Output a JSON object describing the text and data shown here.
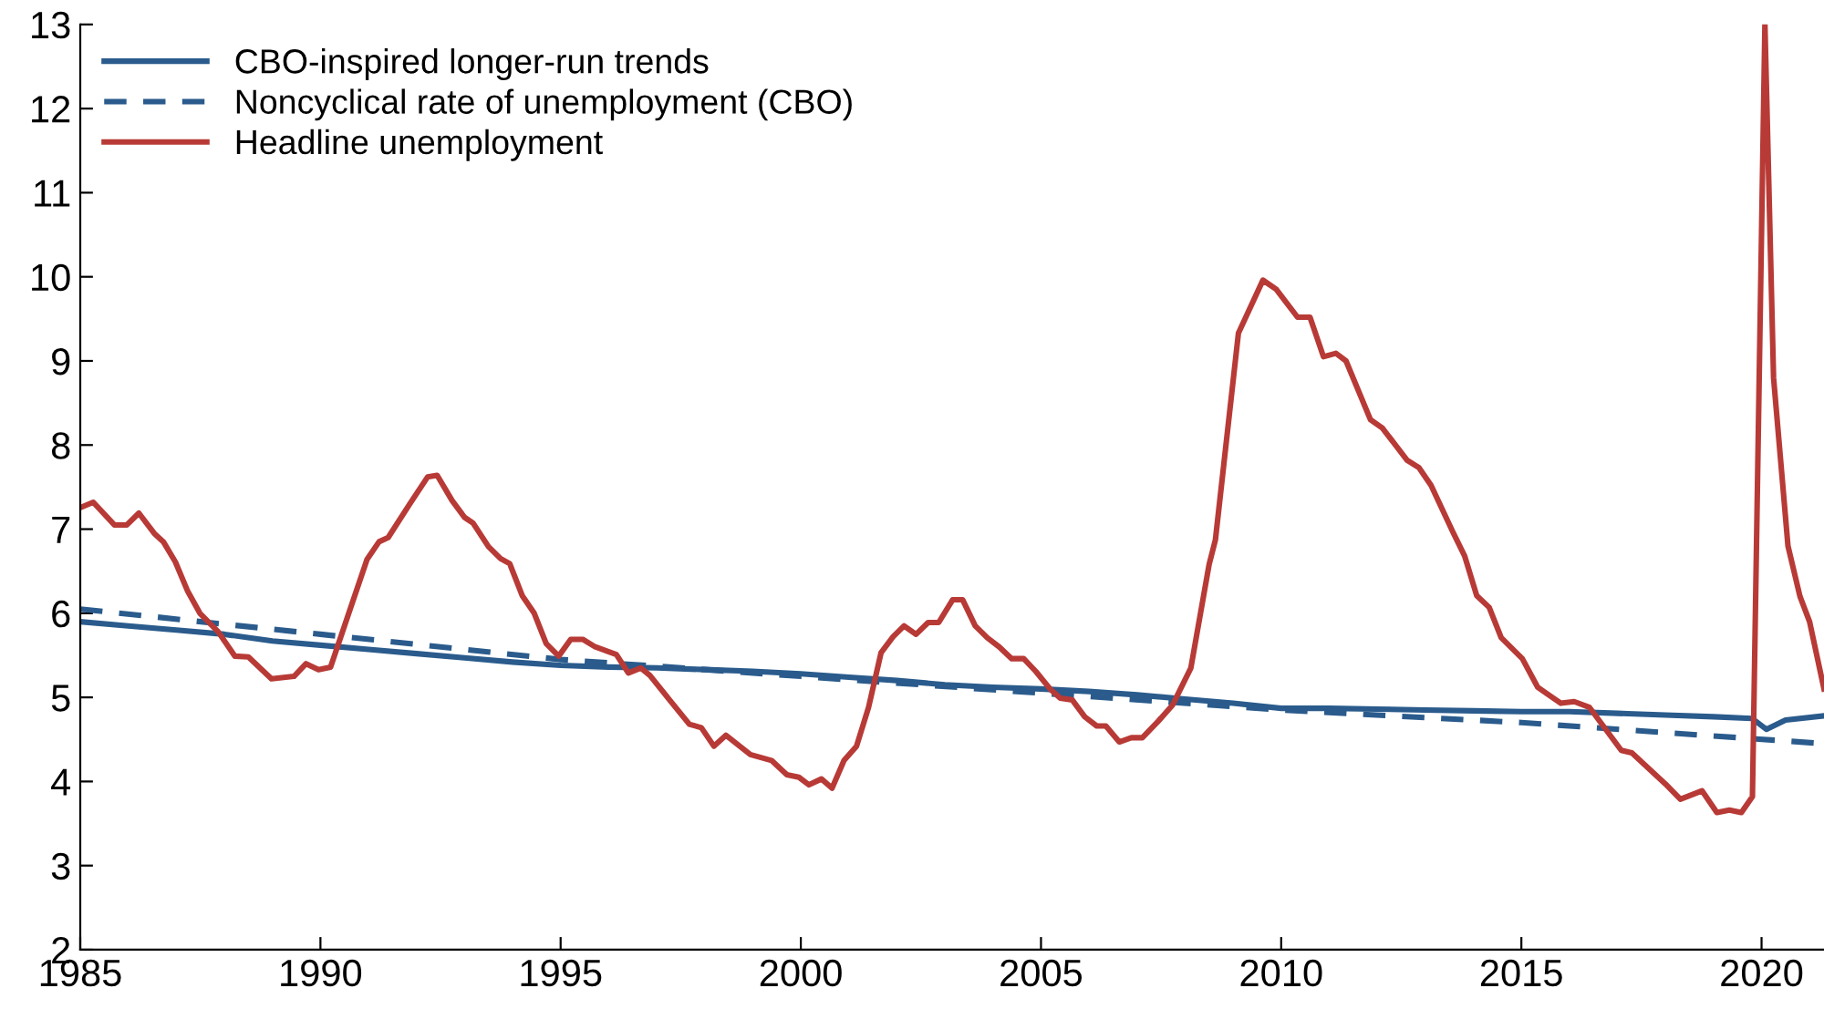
{
  "chart_data": {
    "type": "line",
    "xlim": [
      1985,
      2021.3
    ],
    "xticks": [
      1985,
      1990,
      1995,
      2000,
      2005,
      2010,
      2015,
      2020
    ],
    "ylim": [
      2,
      13
    ],
    "yticks": [
      2,
      3,
      4,
      5,
      6,
      7,
      8,
      9,
      10,
      11,
      12,
      13
    ],
    "grid": false,
    "legend": "top left",
    "series": [
      {
        "name": "CBO-inspired longer-run trends",
        "color": "#2a5b8c",
        "line_style": "solid",
        "x": [
          1985,
          1986,
          1987,
          1988,
          1989,
          1990,
          1991,
          1992,
          1993,
          1994,
          1995,
          1996,
          1997,
          1998,
          1999,
          2000,
          2001,
          2002,
          2003,
          2004,
          2005,
          2006,
          2007,
          2008,
          2009,
          2010,
          2011,
          2012,
          2013,
          2014,
          2015,
          2016,
          2017,
          2018,
          2019,
          2019.8,
          2020.1,
          2020.5,
          2021.3
        ],
        "values": [
          5.9,
          5.85,
          5.8,
          5.75,
          5.67,
          5.62,
          5.57,
          5.52,
          5.47,
          5.42,
          5.38,
          5.36,
          5.35,
          5.33,
          5.31,
          5.28,
          5.24,
          5.2,
          5.15,
          5.12,
          5.1,
          5.07,
          5.03,
          4.98,
          4.93,
          4.87,
          4.87,
          4.86,
          4.85,
          4.84,
          4.83,
          4.83,
          4.81,
          4.79,
          4.77,
          4.75,
          4.62,
          4.73,
          4.78
        ]
      },
      {
        "name": "Noncyclical rate of unemployment (CBO)",
        "color": "#2a5b8c",
        "line_style": "dashed",
        "x": [
          1985,
          1990,
          1995,
          2000,
          2005,
          2010,
          2015,
          2021.3
        ],
        "values": [
          6.05,
          5.75,
          5.45,
          5.25,
          5.05,
          4.85,
          4.7,
          4.45
        ]
      },
      {
        "name": "Headline unemployment",
        "color": "#b83a36",
        "line_style": "solid",
        "x": [
          1985.02,
          1985.27,
          1985.71,
          1985.97,
          1986.22,
          1986.54,
          1986.73,
          1986.98,
          1987.23,
          1987.49,
          1987.87,
          1988.22,
          1988.5,
          1988.98,
          1989.45,
          1989.7,
          1989.96,
          1990.21,
          1990.59,
          1990.97,
          1991.22,
          1991.41,
          1991.86,
          1992.23,
          1992.43,
          1992.74,
          1993.0,
          1993.18,
          1993.5,
          1993.75,
          1993.94,
          1994.2,
          1994.45,
          1994.7,
          1994.96,
          1995.21,
          1995.46,
          1995.72,
          1996.16,
          1996.41,
          1996.67,
          1996.86,
          1997.24,
          1997.68,
          1997.93,
          1998.19,
          1998.44,
          1998.95,
          1999.39,
          1999.71,
          1999.96,
          2000.17,
          2000.43,
          2000.65,
          2000.9,
          2001.16,
          2001.41,
          2001.67,
          2001.92,
          2002.15,
          2002.4,
          2002.65,
          2002.87,
          2003.16,
          2003.37,
          2003.63,
          2003.88,
          2004.13,
          2004.39,
          2004.64,
          2004.89,
          2005.19,
          2005.4,
          2005.65,
          2005.91,
          2006.16,
          2006.35,
          2006.63,
          2006.88,
          2007.11,
          2007.43,
          2007.74,
          2008.12,
          2008.5,
          2008.63,
          2009.11,
          2009.62,
          2009.9,
          2010.34,
          2010.6,
          2010.88,
          2011.14,
          2011.35,
          2011.86,
          2012.11,
          2012.62,
          2012.87,
          2013.12,
          2013.57,
          2013.82,
          2014.07,
          2014.33,
          2014.58,
          2015.02,
          2015.34,
          2015.82,
          2016.1,
          2016.42,
          2017.08,
          2017.3,
          2018.0,
          2018.31,
          2018.76,
          2019.07,
          2019.33,
          2019.58,
          2019.81,
          2020.07,
          2020.25,
          2020.55,
          2020.8,
          2021.0,
          2021.3
        ],
        "values": [
          7.26,
          7.32,
          7.05,
          7.05,
          7.19,
          6.95,
          6.85,
          6.61,
          6.27,
          6.0,
          5.78,
          5.49,
          5.48,
          5.22,
          5.25,
          5.4,
          5.33,
          5.36,
          6.0,
          6.64,
          6.85,
          6.9,
          7.3,
          7.62,
          7.64,
          7.34,
          7.14,
          7.07,
          6.79,
          6.65,
          6.59,
          6.21,
          6.0,
          5.64,
          5.49,
          5.69,
          5.69,
          5.6,
          5.51,
          5.29,
          5.35,
          5.26,
          4.99,
          4.68,
          4.64,
          4.42,
          4.55,
          4.32,
          4.25,
          4.08,
          4.05,
          3.96,
          4.03,
          3.92,
          4.25,
          4.42,
          4.88,
          5.53,
          5.72,
          5.85,
          5.75,
          5.89,
          5.89,
          6.16,
          6.16,
          5.85,
          5.71,
          5.6,
          5.46,
          5.46,
          5.31,
          5.1,
          4.99,
          4.97,
          4.77,
          4.66,
          4.66,
          4.47,
          4.52,
          4.52,
          4.71,
          4.91,
          5.35,
          6.58,
          6.87,
          9.33,
          9.96,
          9.85,
          9.52,
          9.52,
          9.05,
          9.09,
          9.0,
          8.3,
          8.2,
          7.82,
          7.73,
          7.52,
          6.97,
          6.68,
          6.21,
          6.07,
          5.71,
          5.46,
          5.12,
          4.93,
          4.95,
          4.88,
          4.37,
          4.34,
          3.97,
          3.79,
          3.89,
          3.63,
          3.66,
          3.63,
          3.82,
          13.0,
          8.8,
          6.8,
          6.2,
          5.9,
          5.1
        ]
      }
    ]
  }
}
